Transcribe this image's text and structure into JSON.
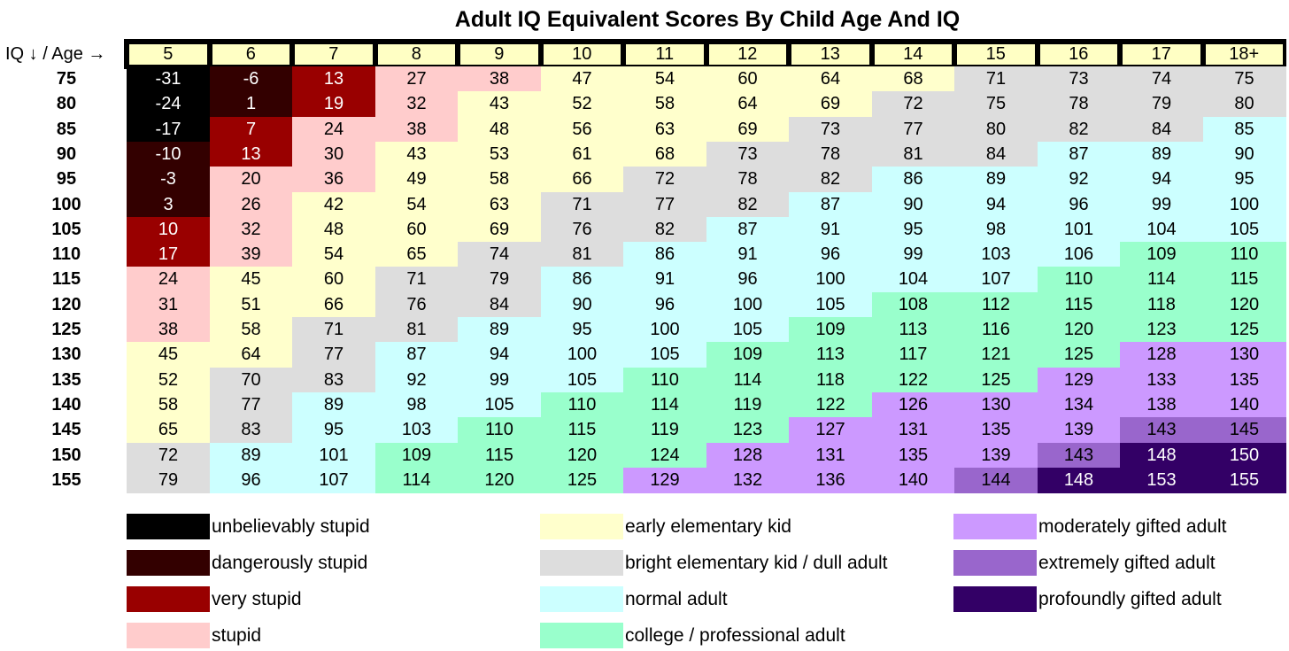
{
  "chart_data": {
    "type": "table",
    "title": "Adult IQ Equivalent Scores By Child Age And IQ",
    "corner_label": "IQ ↓ / Age →",
    "ages": [
      "5",
      "6",
      "7",
      "8",
      "9",
      "10",
      "11",
      "12",
      "13",
      "14",
      "15",
      "16",
      "17",
      "18+"
    ],
    "iqs": [
      "75",
      "80",
      "85",
      "90",
      "95",
      "100",
      "105",
      "110",
      "115",
      "120",
      "125",
      "130",
      "135",
      "140",
      "145",
      "150",
      "155"
    ],
    "values": [
      [
        -31,
        -6,
        13,
        27,
        38,
        47,
        54,
        60,
        64,
        68,
        71,
        73,
        74,
        75
      ],
      [
        -24,
        1,
        19,
        32,
        43,
        52,
        58,
        64,
        69,
        72,
        75,
        78,
        79,
        80
      ],
      [
        -17,
        7,
        24,
        38,
        48,
        56,
        63,
        69,
        73,
        77,
        80,
        82,
        84,
        85
      ],
      [
        -10,
        13,
        30,
        43,
        53,
        61,
        68,
        73,
        78,
        81,
        84,
        87,
        89,
        90
      ],
      [
        -3,
        20,
        36,
        49,
        58,
        66,
        72,
        78,
        82,
        86,
        89,
        92,
        94,
        95
      ],
      [
        3,
        26,
        42,
        54,
        63,
        71,
        77,
        82,
        87,
        90,
        94,
        96,
        99,
        100
      ],
      [
        10,
        32,
        48,
        60,
        69,
        76,
        82,
        87,
        91,
        95,
        98,
        101,
        104,
        105
      ],
      [
        17,
        39,
        54,
        65,
        74,
        81,
        86,
        91,
        96,
        99,
        103,
        106,
        109,
        110
      ],
      [
        24,
        45,
        60,
        71,
        79,
        86,
        91,
        96,
        100,
        104,
        107,
        110,
        114,
        115
      ],
      [
        31,
        51,
        66,
        76,
        84,
        90,
        96,
        100,
        105,
        108,
        112,
        115,
        118,
        120
      ],
      [
        38,
        58,
        71,
        81,
        89,
        95,
        100,
        105,
        109,
        113,
        116,
        120,
        123,
        125
      ],
      [
        45,
        64,
        77,
        87,
        94,
        100,
        105,
        109,
        113,
        117,
        121,
        125,
        128,
        130
      ],
      [
        52,
        70,
        83,
        92,
        99,
        105,
        110,
        114,
        118,
        122,
        125,
        129,
        133,
        135
      ],
      [
        58,
        77,
        89,
        98,
        105,
        110,
        114,
        119,
        122,
        126,
        130,
        134,
        138,
        140
      ],
      [
        65,
        83,
        95,
        103,
        110,
        115,
        119,
        123,
        127,
        131,
        135,
        139,
        143,
        145
      ],
      [
        72,
        89,
        101,
        109,
        115,
        120,
        124,
        128,
        131,
        135,
        139,
        143,
        148,
        150
      ],
      [
        79,
        96,
        107,
        114,
        120,
        125,
        129,
        132,
        136,
        140,
        144,
        148,
        153,
        155
      ]
    ],
    "categories": [
      {
        "name": "unbelievably stupid",
        "color": "#000000",
        "text_color": "#ffffff"
      },
      {
        "name": "dangerously stupid",
        "color": "#330000",
        "text_color": "#ffffff"
      },
      {
        "name": "very stupid",
        "color": "#990000",
        "text_color": "#ffffff"
      },
      {
        "name": "stupid",
        "color": "#ffcccc",
        "text_color": "#000000"
      },
      {
        "name": "early elementary kid",
        "color": "#ffffcc",
        "text_color": "#000000"
      },
      {
        "name": "bright elementary kid / dull adult",
        "color": "#dddddd",
        "text_color": "#000000"
      },
      {
        "name": "normal adult",
        "color": "#ccffff",
        "text_color": "#000000"
      },
      {
        "name": "college / professional adult",
        "color": "#99ffcc",
        "text_color": "#000000"
      },
      {
        "name": "moderately gifted adult",
        "color": "#cc99ff",
        "text_color": "#000000"
      },
      {
        "name": "extremely gifted adult",
        "color": "#9966cc",
        "text_color": "#000000"
      },
      {
        "name": "profoundly gifted adult",
        "color": "#330066",
        "text_color": "#ffffff"
      }
    ],
    "category_index": [
      [
        0,
        1,
        2,
        3,
        3,
        4,
        4,
        4,
        4,
        4,
        5,
        5,
        5,
        5
      ],
      [
        0,
        1,
        2,
        3,
        4,
        4,
        4,
        4,
        4,
        5,
        5,
        5,
        5,
        5
      ],
      [
        0,
        2,
        3,
        3,
        4,
        4,
        4,
        4,
        5,
        5,
        5,
        5,
        5,
        6
      ],
      [
        1,
        2,
        3,
        4,
        4,
        4,
        4,
        5,
        5,
        5,
        5,
        6,
        6,
        6
      ],
      [
        1,
        3,
        3,
        4,
        4,
        4,
        5,
        5,
        5,
        6,
        6,
        6,
        6,
        6
      ],
      [
        1,
        3,
        4,
        4,
        4,
        5,
        5,
        5,
        6,
        6,
        6,
        6,
        6,
        6
      ],
      [
        2,
        3,
        4,
        4,
        4,
        5,
        5,
        6,
        6,
        6,
        6,
        6,
        6,
        6
      ],
      [
        2,
        3,
        4,
        4,
        5,
        5,
        6,
        6,
        6,
        6,
        6,
        6,
        7,
        7
      ],
      [
        3,
        4,
        4,
        5,
        5,
        6,
        6,
        6,
        6,
        6,
        6,
        7,
        7,
        7
      ],
      [
        3,
        4,
        4,
        5,
        5,
        6,
        6,
        6,
        6,
        7,
        7,
        7,
        7,
        7
      ],
      [
        3,
        4,
        5,
        5,
        6,
        6,
        6,
        6,
        7,
        7,
        7,
        7,
        7,
        7
      ],
      [
        4,
        4,
        5,
        6,
        6,
        6,
        6,
        7,
        7,
        7,
        7,
        7,
        8,
        8
      ],
      [
        4,
        5,
        5,
        6,
        6,
        6,
        7,
        7,
        7,
        7,
        7,
        8,
        8,
        8
      ],
      [
        4,
        5,
        6,
        6,
        6,
        7,
        7,
        7,
        7,
        8,
        8,
        8,
        8,
        8
      ],
      [
        4,
        5,
        6,
        6,
        7,
        7,
        7,
        7,
        8,
        8,
        8,
        8,
        9,
        9
      ],
      [
        5,
        6,
        6,
        7,
        7,
        7,
        7,
        8,
        8,
        8,
        8,
        9,
        10,
        10
      ],
      [
        5,
        6,
        6,
        7,
        7,
        7,
        8,
        8,
        8,
        8,
        9,
        10,
        10,
        10
      ]
    ],
    "legend": [
      {
        "label": "unbelievably stupid",
        "category": 0
      },
      {
        "label": "dangerously stupid",
        "category": 1
      },
      {
        "label": "very stupid",
        "category": 2
      },
      {
        "label": "stupid",
        "category": 3
      },
      {
        "label": "early elementary kid",
        "category": 4
      },
      {
        "label": "bright elementary kid / dull adult",
        "category": 5
      },
      {
        "label": "normal adult",
        "category": 6
      },
      {
        "label": "college / professional adult",
        "category": 7
      },
      {
        "label": "moderately gifted adult",
        "category": 8
      },
      {
        "label": "extremely gifted adult",
        "category": 9
      },
      {
        "label": "profoundly gifted adult",
        "category": 10
      }
    ]
  }
}
